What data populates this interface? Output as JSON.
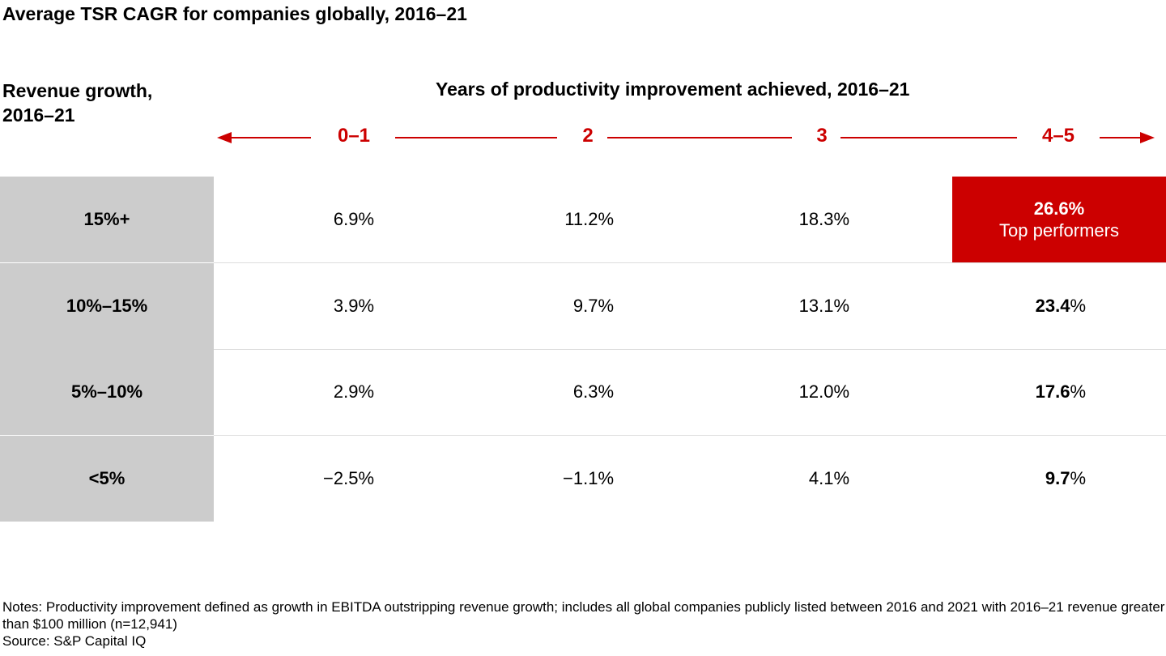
{
  "title": "Average TSR CAGR for companies globally, 2016–21",
  "chart_data": {
    "type": "table",
    "row_axis_label": "Revenue growth, 2016–21",
    "column_axis_label": "Years of productivity improvement achieved, 2016–21",
    "columns": [
      "0–1",
      "2",
      "3",
      "4–5"
    ],
    "rows": [
      {
        "label": "15%+",
        "values": [
          "6.9",
          "11.2",
          "18.3",
          "26.6"
        ]
      },
      {
        "label": "10%–15%",
        "values": [
          "3.9",
          "9.7",
          "13.1",
          "23.4"
        ]
      },
      {
        "label": "5%–10%",
        "values": [
          "2.9",
          "6.3",
          "12.0",
          "17.6"
        ]
      },
      {
        "label": "<5%",
        "values": [
          "−2.5",
          "−1.1",
          "4.1",
          "9.7"
        ]
      }
    ],
    "percent_sign": "%",
    "highlight": {
      "label": "Top performers"
    },
    "colors": {
      "accent": "#cc0000",
      "row_header_bg": "#cccccc",
      "separator": "#dddddd"
    }
  },
  "notes": {
    "line1": "Notes: Productivity improvement defined as growth in EBITDA outstripping revenue growth; includes all global companies publicly listed between 2016 and 2021 with 2016–21 revenue greater than $100 million (n=12,941)",
    "line2": "Source: S&P Capital IQ"
  }
}
